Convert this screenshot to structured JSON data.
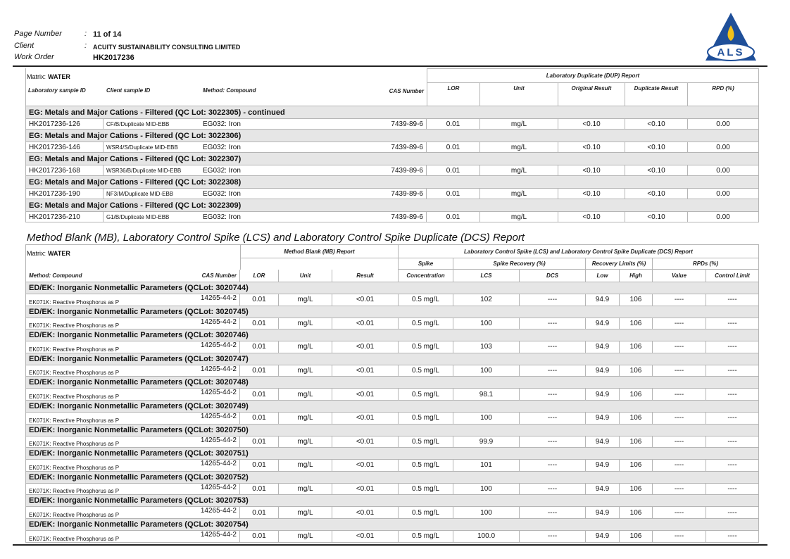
{
  "header": {
    "page_number_label": "Page Number",
    "page_number": "11 of 14",
    "client_label": "Client",
    "client": "ACUITY SUSTAINABILITY CONSULTING LIMITED",
    "work_order_label": "Work Order",
    "work_order": "HK2017236",
    "separator": ":",
    "logo": "ALS"
  },
  "dup_table": {
    "matrix_label": "Matrix:",
    "matrix": "WATER",
    "report_title": "Laboratory Duplicate (DUP) Report",
    "columns": [
      "Laboratory sample ID",
      "Client sample ID",
      "Method: Compound",
      "CAS Number",
      "LOR",
      "Unit",
      "Original Result",
      "Duplicate Result",
      "RPD (%)"
    ],
    "groups": [
      {
        "title": "EG: Metals and Major Cations - Filtered  (QC Lot: 3022305)  - continued",
        "rows": [
          [
            "HK2017236-126",
            "CF/B/Duplicate MID-EBB",
            "EG032: Iron",
            "7439-89-6",
            "0.01",
            "mg/L",
            "<0.10",
            "<0.10",
            "0.00"
          ]
        ]
      },
      {
        "title": "EG: Metals and Major Cations - Filtered  (QC Lot: 3022306)",
        "rows": [
          [
            "HK2017236-146",
            "WSR4/S/Duplicate MID-EBB",
            "EG032: Iron",
            "7439-89-6",
            "0.01",
            "mg/L",
            "<0.10",
            "<0.10",
            "0.00"
          ]
        ]
      },
      {
        "title": "EG: Metals and Major Cations - Filtered  (QC Lot: 3022307)",
        "rows": [
          [
            "HK2017236-168",
            "WSR36/B/Duplicate MID-EBB",
            "EG032: Iron",
            "7439-89-6",
            "0.01",
            "mg/L",
            "<0.10",
            "<0.10",
            "0.00"
          ]
        ]
      },
      {
        "title": "EG: Metals and Major Cations - Filtered  (QC Lot: 3022308)",
        "rows": [
          [
            "HK2017236-190",
            "NF3/M/Duplicate MID-EBB",
            "EG032: Iron",
            "7439-89-6",
            "0.01",
            "mg/L",
            "<0.10",
            "<0.10",
            "0.00"
          ]
        ]
      },
      {
        "title": "EG: Metals and Major Cations - Filtered  (QC Lot: 3022309)",
        "rows": [
          [
            "HK2017236-210",
            "G1/B/Duplicate MID-EBB",
            "EG032: Iron",
            "7439-89-6",
            "0.01",
            "mg/L",
            "<0.10",
            "<0.10",
            "0.00"
          ]
        ]
      }
    ]
  },
  "qc_section": {
    "title": "Method Blank (MB), Laboratory Control Spike (LCS) and Laboratory Control Spike Duplicate (DCS) Report",
    "matrix_label": "Matrix:",
    "matrix": "WATER",
    "mb_title": "Method Blank (MB) Report",
    "lcs_title": "Laboratory Control Spike (LCS) and Laboratory Control Spike Duplicate (DCS) Report",
    "subheaders": [
      "Spike",
      "Spike Recovery (%)",
      "Recovery Limits (%)",
      "RPDs (%)"
    ],
    "columns": [
      "Method: Compound",
      "CAS Number",
      "LOR",
      "Unit",
      "Result",
      "Concentration",
      "LCS",
      "DCS",
      "Low",
      "High",
      "Value",
      "Control Limit"
    ],
    "groups": [
      {
        "title": "ED/EK: Inorganic Nonmetallic Parameters  (QCLot: 3020744)",
        "rows": [
          [
            "EK071K: Reactive Phosphorus as P",
            "14265-44-2",
            "0.01",
            "mg/L",
            "<0.01",
            "0.5 mg/L",
            "102",
            "----",
            "94.9",
            "106",
            "----",
            "----"
          ]
        ]
      },
      {
        "title": "ED/EK: Inorganic Nonmetallic Parameters  (QCLot: 3020745)",
        "rows": [
          [
            "EK071K: Reactive Phosphorus as P",
            "14265-44-2",
            "0.01",
            "mg/L",
            "<0.01",
            "0.5 mg/L",
            "100",
            "----",
            "94.9",
            "106",
            "----",
            "----"
          ]
        ]
      },
      {
        "title": "ED/EK: Inorganic Nonmetallic Parameters  (QCLot: 3020746)",
        "rows": [
          [
            "EK071K: Reactive Phosphorus as P",
            "14265-44-2",
            "0.01",
            "mg/L",
            "<0.01",
            "0.5 mg/L",
            "103",
            "----",
            "94.9",
            "106",
            "----",
            "----"
          ]
        ]
      },
      {
        "title": "ED/EK: Inorganic Nonmetallic Parameters  (QCLot: 3020747)",
        "rows": [
          [
            "EK071K: Reactive Phosphorus as P",
            "14265-44-2",
            "0.01",
            "mg/L",
            "<0.01",
            "0.5 mg/L",
            "100",
            "----",
            "94.9",
            "106",
            "----",
            "----"
          ]
        ]
      },
      {
        "title": "ED/EK: Inorganic Nonmetallic Parameters  (QCLot: 3020748)",
        "rows": [
          [
            "EK071K: Reactive Phosphorus as P",
            "14265-44-2",
            "0.01",
            "mg/L",
            "<0.01",
            "0.5 mg/L",
            "98.1",
            "----",
            "94.9",
            "106",
            "----",
            "----"
          ]
        ]
      },
      {
        "title": "ED/EK: Inorganic Nonmetallic Parameters  (QCLot: 3020749)",
        "rows": [
          [
            "EK071K: Reactive Phosphorus as P",
            "14265-44-2",
            "0.01",
            "mg/L",
            "<0.01",
            "0.5 mg/L",
            "100",
            "----",
            "94.9",
            "106",
            "----",
            "----"
          ]
        ]
      },
      {
        "title": "ED/EK: Inorganic Nonmetallic Parameters  (QCLot: 3020750)",
        "rows": [
          [
            "EK071K: Reactive Phosphorus as P",
            "14265-44-2",
            "0.01",
            "mg/L",
            "<0.01",
            "0.5 mg/L",
            "99.9",
            "----",
            "94.9",
            "106",
            "----",
            "----"
          ]
        ]
      },
      {
        "title": "ED/EK: Inorganic Nonmetallic Parameters  (QCLot: 3020751)",
        "rows": [
          [
            "EK071K: Reactive Phosphorus as P",
            "14265-44-2",
            "0.01",
            "mg/L",
            "<0.01",
            "0.5 mg/L",
            "101",
            "----",
            "94.9",
            "106",
            "----",
            "----"
          ]
        ]
      },
      {
        "title": "ED/EK: Inorganic Nonmetallic Parameters  (QCLot: 3020752)",
        "rows": [
          [
            "EK071K: Reactive Phosphorus as P",
            "14265-44-2",
            "0.01",
            "mg/L",
            "<0.01",
            "0.5 mg/L",
            "100",
            "----",
            "94.9",
            "106",
            "----",
            "----"
          ]
        ]
      },
      {
        "title": "ED/EK: Inorganic Nonmetallic Parameters  (QCLot: 3020753)",
        "rows": [
          [
            "EK071K: Reactive Phosphorus as P",
            "14265-44-2",
            "0.01",
            "mg/L",
            "<0.01",
            "0.5 mg/L",
            "100",
            "----",
            "94.9",
            "106",
            "----",
            "----"
          ]
        ]
      },
      {
        "title": "ED/EK: Inorganic Nonmetallic Parameters  (QCLot: 3020754)",
        "rows": [
          [
            "EK071K: Reactive Phosphorus as P",
            "14265-44-2",
            "0.01",
            "mg/L",
            "<0.01",
            "0.5 mg/L",
            "100.0",
            "----",
            "94.9",
            "106",
            "----",
            "----"
          ]
        ]
      }
    ]
  }
}
